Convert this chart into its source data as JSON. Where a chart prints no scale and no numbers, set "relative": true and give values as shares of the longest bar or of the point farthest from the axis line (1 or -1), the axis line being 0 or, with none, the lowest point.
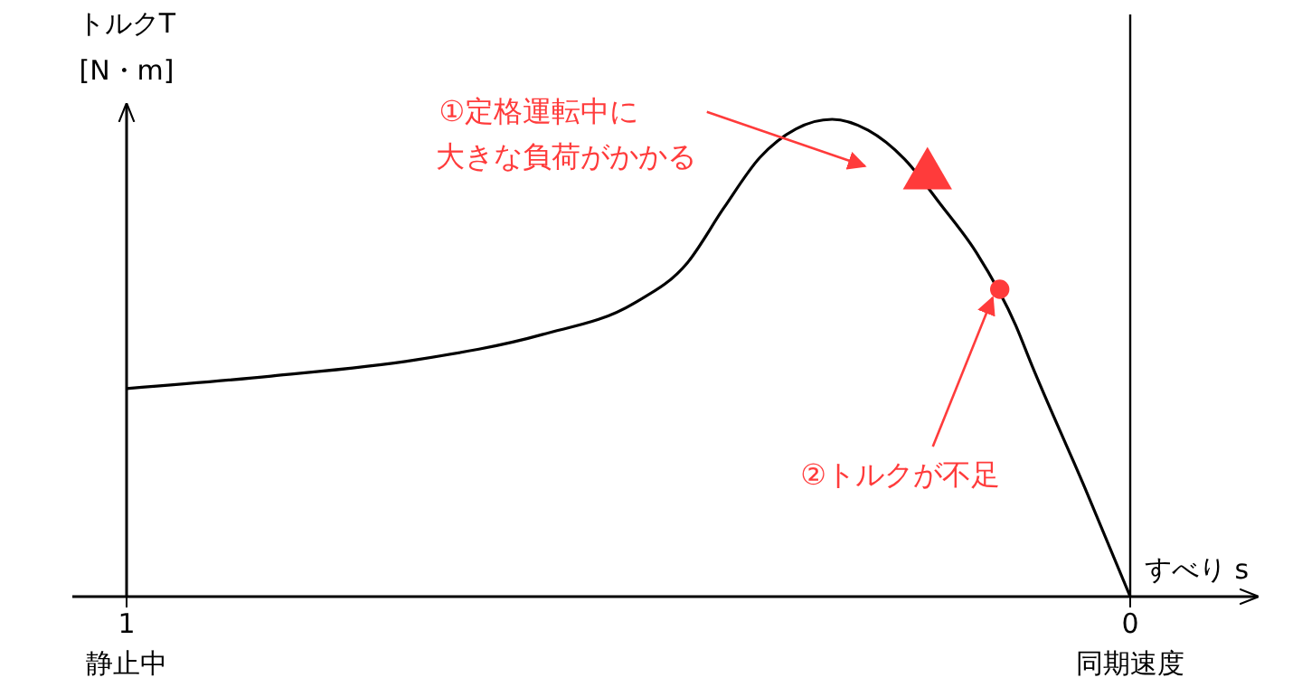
{
  "chart_data": {
    "type": "line",
    "relative": true,
    "xlabel": "すべり s",
    "ylabel": "トルクT [N・m]",
    "xlim": [
      1,
      0
    ],
    "xticks": [
      1,
      0
    ],
    "ref_lines": [
      {
        "axis": "x",
        "value": 0,
        "color": "#000000"
      }
    ],
    "series": [
      {
        "type": "line",
        "color": "#000000",
        "x": [
          1,
          0.856,
          0.712,
          0.586,
          0.495,
          0.441,
          0.405,
          0.369,
          0.333,
          0.297,
          0.261,
          0.225,
          0.189,
          0.153,
          0.114,
          0.099,
          0.045,
          0
        ],
        "values": [
          0.436,
          0.462,
          0.496,
          0.549,
          0.614,
          0.7,
          0.814,
          0.92,
          0.98,
          1,
          0.977,
          0.917,
          0.822,
          0.72,
          0.568,
          0.49,
          0.227,
          0
        ]
      },
      {
        "type": "scatter",
        "marker": "triangle",
        "color": "#ff3b3b",
        "x": [
          0.202
        ],
        "values": [
          0.883
        ]
      },
      {
        "type": "scatter",
        "marker": "circle",
        "color": "#ff3b3b",
        "x": [
          0.13
        ],
        "values": [
          0.644
        ]
      }
    ],
    "annotations": [
      "①定格運転中に大きな負荷がかかる",
      "②トルクが不足",
      "静止中",
      "同期速度"
    ]
  }
}
